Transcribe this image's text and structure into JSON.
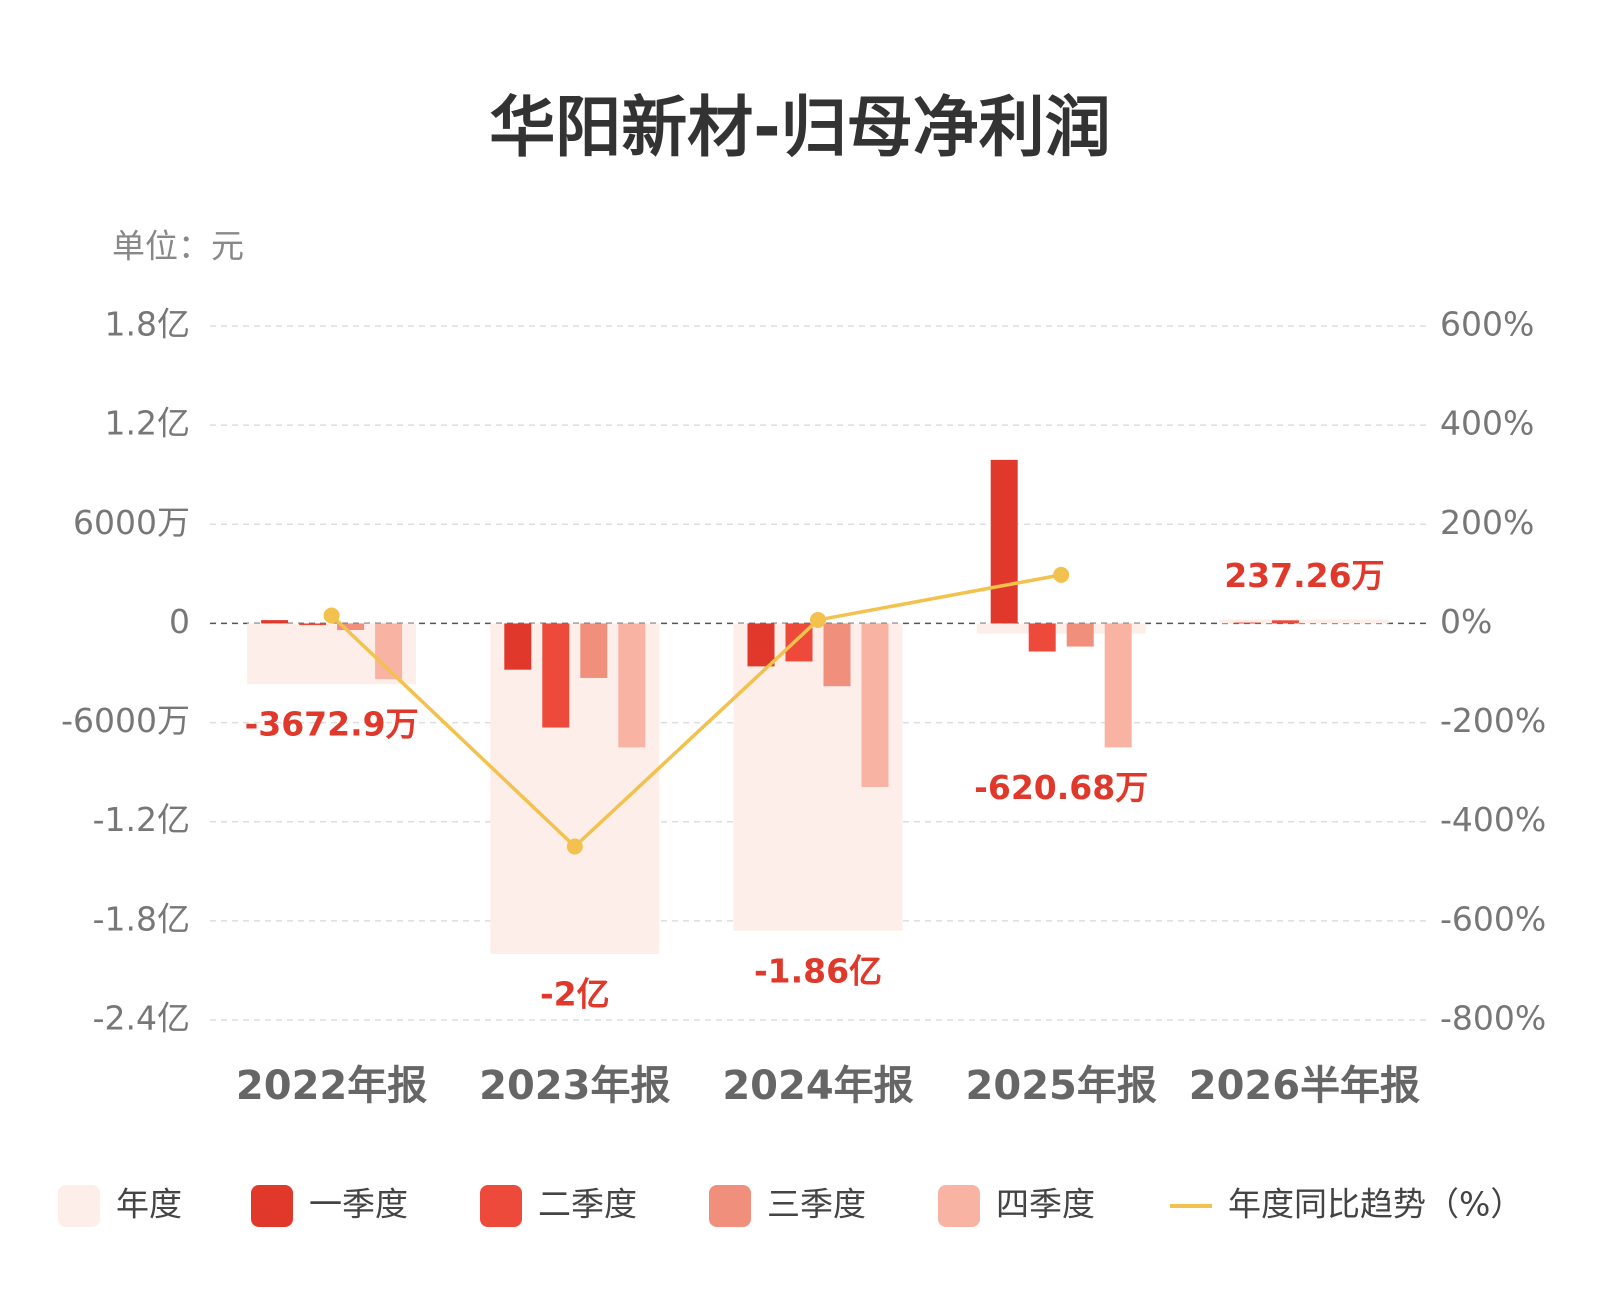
{
  "chart_data": {
    "type": "bar",
    "title": "华阳新材-归母净利润",
    "unit_label": "单位：元",
    "categories": [
      "2022年报",
      "2023年报",
      "2024年报",
      "2025年报",
      "2026半年报"
    ],
    "series": [
      {
        "name": "年度",
        "color": "#fdeeea",
        "values": [
          -36729000,
          -200000000,
          -186000000,
          -6206800,
          2372600
        ],
        "value_labels": [
          "-3672.9万",
          "-2亿",
          "-1.86亿",
          "-620.68万",
          "237.26万"
        ]
      },
      {
        "name": "一季度",
        "color": "#e0392b",
        "values": [
          2000000,
          -28000000,
          -26000000,
          99000000,
          500000
        ]
      },
      {
        "name": "二季度",
        "color": "#ee4a3c",
        "values": [
          -1000000,
          -63000000,
          -23000000,
          -17000000,
          1872600
        ]
      },
      {
        "name": "三季度",
        "color": "#f0907c",
        "values": [
          -4000000,
          -33000000,
          -38000000,
          -14000000,
          null
        ]
      },
      {
        "name": "四季度",
        "color": "#f8b3a3",
        "values": [
          -33700000,
          -75000000,
          -99000000,
          -75000000,
          null
        ]
      },
      {
        "name": "年度同比趋势（%）",
        "type": "line",
        "axis": "y2",
        "color": "#f2c14e",
        "values": [
          16,
          -450,
          7,
          98,
          null
        ]
      }
    ],
    "ylim": [
      -240000000,
      180000000
    ],
    "yticks": [
      {
        "value": 180000000,
        "label": "1.8亿"
      },
      {
        "value": 120000000,
        "label": "1.2亿"
      },
      {
        "value": 60000000,
        "label": "6000万"
      },
      0,
      {
        "value": -60000000,
        "label": "-6000万"
      },
      {
        "value": -120000000,
        "label": "-1.2亿"
      },
      {
        "value": -180000000,
        "label": "-1.8亿"
      },
      {
        "value": -240000000,
        "label": "-2.4亿"
      }
    ],
    "y2lim": [
      -800,
      600
    ],
    "y2ticks": [
      {
        "value": 600,
        "label": "600%"
      },
      {
        "value": 400,
        "label": "400%"
      },
      {
        "value": 200,
        "label": "200%"
      },
      {
        "value": 0,
        "label": "0%"
      },
      {
        "value": -200,
        "label": "-200%"
      },
      {
        "value": -400,
        "label": "-400%"
      },
      {
        "value": -600,
        "label": "-600%"
      },
      {
        "value": -800,
        "label": "-800%"
      }
    ],
    "grid": true,
    "legend": "bottom"
  }
}
